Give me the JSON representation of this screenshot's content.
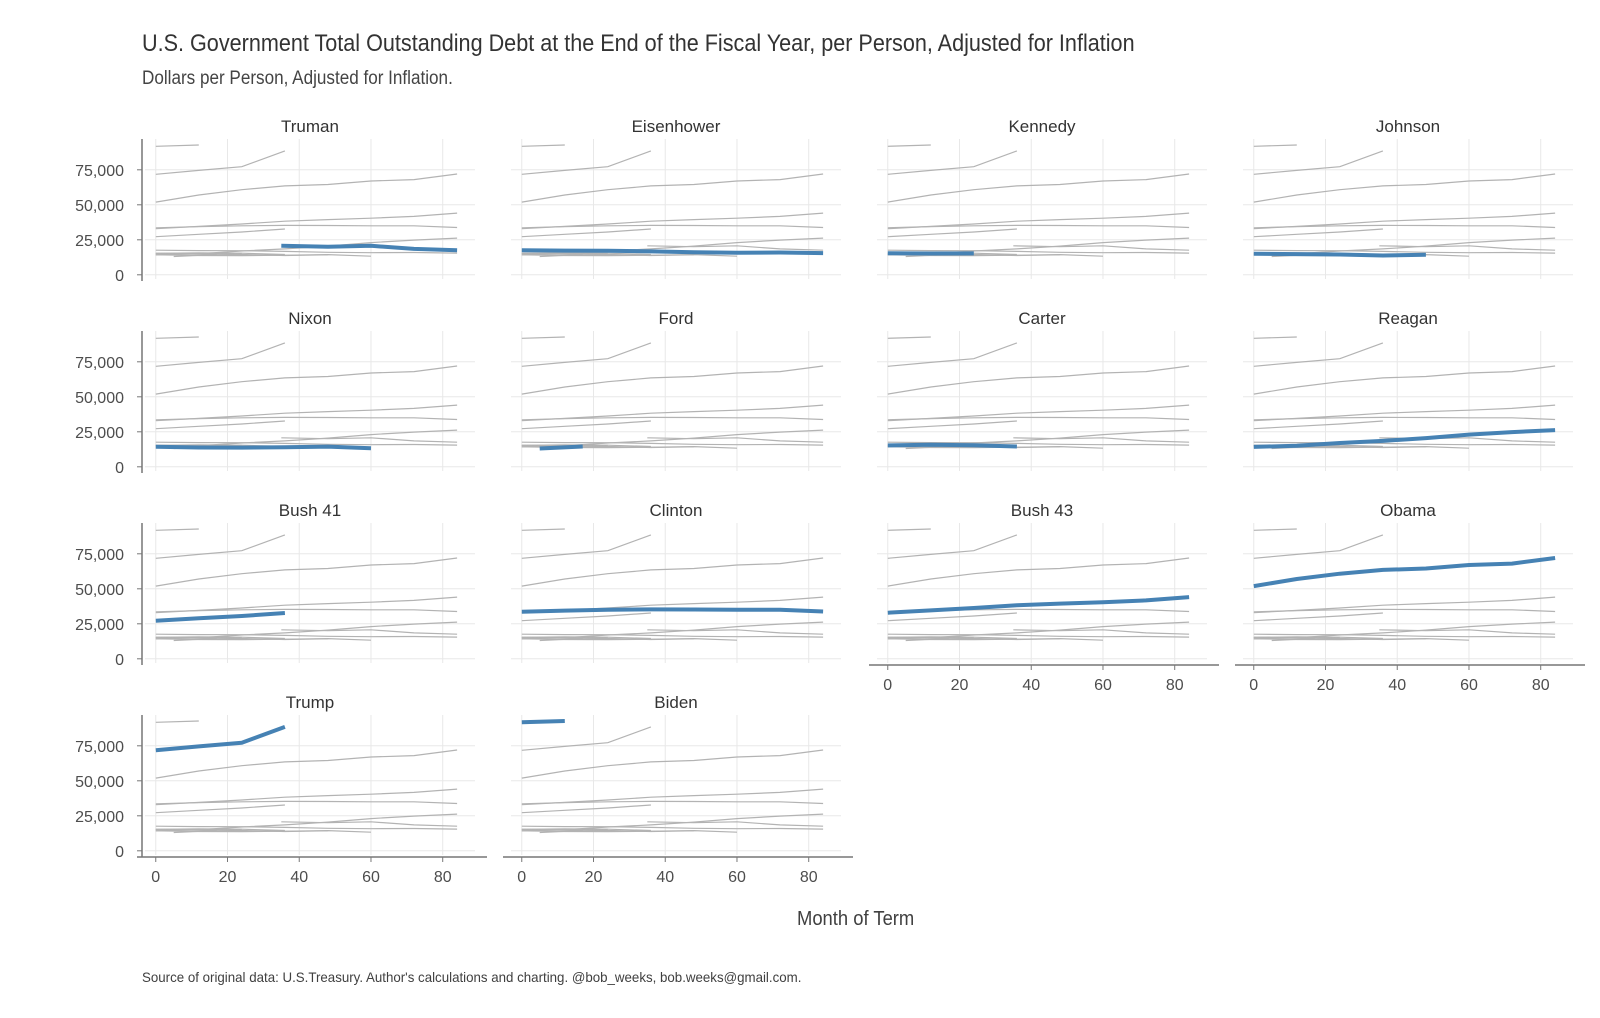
{
  "chart_data": {
    "type": "line",
    "title": "U.S. Government Total Outstanding Debt at the End of the Fiscal Year, per Person, Adjusted for Inflation",
    "subtitle": "Dollars per Person, Adjusted for Inflation.",
    "xlabel": "Month of Term",
    "ylabel": "",
    "caption": "Source of original data: U.S.Treasury. Author's calculations and charting. @bob_weeks, bob.weeks@gmail.com.",
    "xlim": [
      -3,
      89
    ],
    "ylim": [
      -3000,
      97000
    ],
    "x_ticks": [
      0,
      20,
      40,
      60,
      80
    ],
    "y_ticks": [
      0,
      25000,
      50000,
      75000
    ],
    "y_tick_labels": [
      "0",
      "25,000",
      "50,000",
      "75,000"
    ],
    "grid": true,
    "layout": "facets, 4 columns",
    "highlight_color": "#4682b4",
    "context_color": "#b3b3b3",
    "panels": [
      {
        "name": "Truman",
        "x": [
          35,
          48,
          60,
          72,
          84
        ],
        "y": [
          20700,
          20100,
          20700,
          18500,
          17600
        ]
      },
      {
        "name": "Eisenhower",
        "x": [
          0,
          12,
          24,
          36,
          48,
          60,
          72,
          84
        ],
        "y": [
          17600,
          17300,
          17200,
          16700,
          16100,
          15800,
          15900,
          15500
        ]
      },
      {
        "name": "Kennedy",
        "x": [
          0,
          12,
          24
        ],
        "y": [
          15400,
          15200,
          15300
        ]
      },
      {
        "name": "Johnson",
        "x": [
          0,
          12,
          24,
          36,
          48
        ],
        "y": [
          15000,
          14800,
          14500,
          13800,
          14300
        ]
      },
      {
        "name": "Nixon",
        "x": [
          0,
          12,
          24,
          36,
          48,
          60
        ],
        "y": [
          14300,
          13800,
          13700,
          14000,
          14400,
          13300
        ]
      },
      {
        "name": "Ford",
        "x": [
          5,
          17
        ],
        "y": [
          13100,
          14500
        ]
      },
      {
        "name": "Carter",
        "x": [
          0,
          12,
          24,
          36
        ],
        "y": [
          15300,
          15700,
          15400,
          14500
        ]
      },
      {
        "name": "Reagan",
        "x": [
          0,
          12,
          24,
          36,
          48,
          60,
          72,
          84
        ],
        "y": [
          14200,
          15100,
          17000,
          18500,
          20500,
          23000,
          24800,
          26200
        ]
      },
      {
        "name": "Bush 41",
        "x": [
          0,
          12,
          24,
          36
        ],
        "y": [
          27200,
          28900,
          30600,
          32700
        ]
      },
      {
        "name": "Clinton",
        "x": [
          0,
          12,
          24,
          36,
          48,
          60,
          72,
          84
        ],
        "y": [
          33600,
          34400,
          35000,
          35300,
          35200,
          35000,
          35000,
          33800
        ]
      },
      {
        "name": "Bush 43",
        "x": [
          0,
          12,
          24,
          36,
          48,
          60,
          72,
          84
        ],
        "y": [
          32900,
          34600,
          36300,
          38300,
          39400,
          40400,
          41700,
          44100
        ]
      },
      {
        "name": "Obama",
        "x": [
          0,
          12,
          24,
          36,
          48,
          60,
          72,
          84
        ],
        "y": [
          51900,
          57000,
          60800,
          63500,
          64500,
          67000,
          68000,
          72000
        ]
      },
      {
        "name": "Trump",
        "x": [
          0,
          12,
          24,
          36
        ],
        "y": [
          71800,
          74600,
          77200,
          88500
        ]
      },
      {
        "name": "Biden",
        "x": [
          0,
          12
        ],
        "y": [
          91800,
          92700
        ]
      }
    ]
  }
}
